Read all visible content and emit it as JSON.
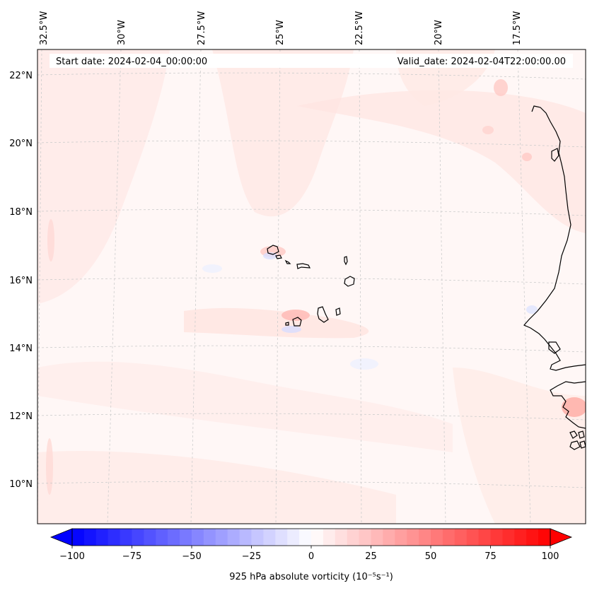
{
  "header": {
    "start_date": "Start date: 2024-02-04_00:00:00",
    "valid_date": "Valid_date: 2024-02-04T22:00:00.00"
  },
  "axes": {
    "lon_labels": [
      "32.5°W",
      "30°W",
      "27.5°W",
      "25°W",
      "22.5°W",
      "20°W",
      "17.5°W"
    ],
    "lat_labels": [
      "22°N",
      "20°N",
      "18°N",
      "16°N",
      "14°N",
      "12°N",
      "10°N"
    ]
  },
  "colorbar": {
    "tick_labels": [
      "−100",
      "−75",
      "−50",
      "−25",
      "0",
      "25",
      "50",
      "75",
      "100"
    ],
    "label": "925 hPa absolute vorticity (10⁻⁵s⁻¹)",
    "min": -100,
    "max": 100,
    "levels": 40,
    "cmap": "bwr",
    "extend": "both"
  },
  "colors": {
    "negative": "#0000ff",
    "neutral": "#ffffff",
    "positive": "#ff0000",
    "coastline": "#000000",
    "gridline": "#cccccc"
  }
}
